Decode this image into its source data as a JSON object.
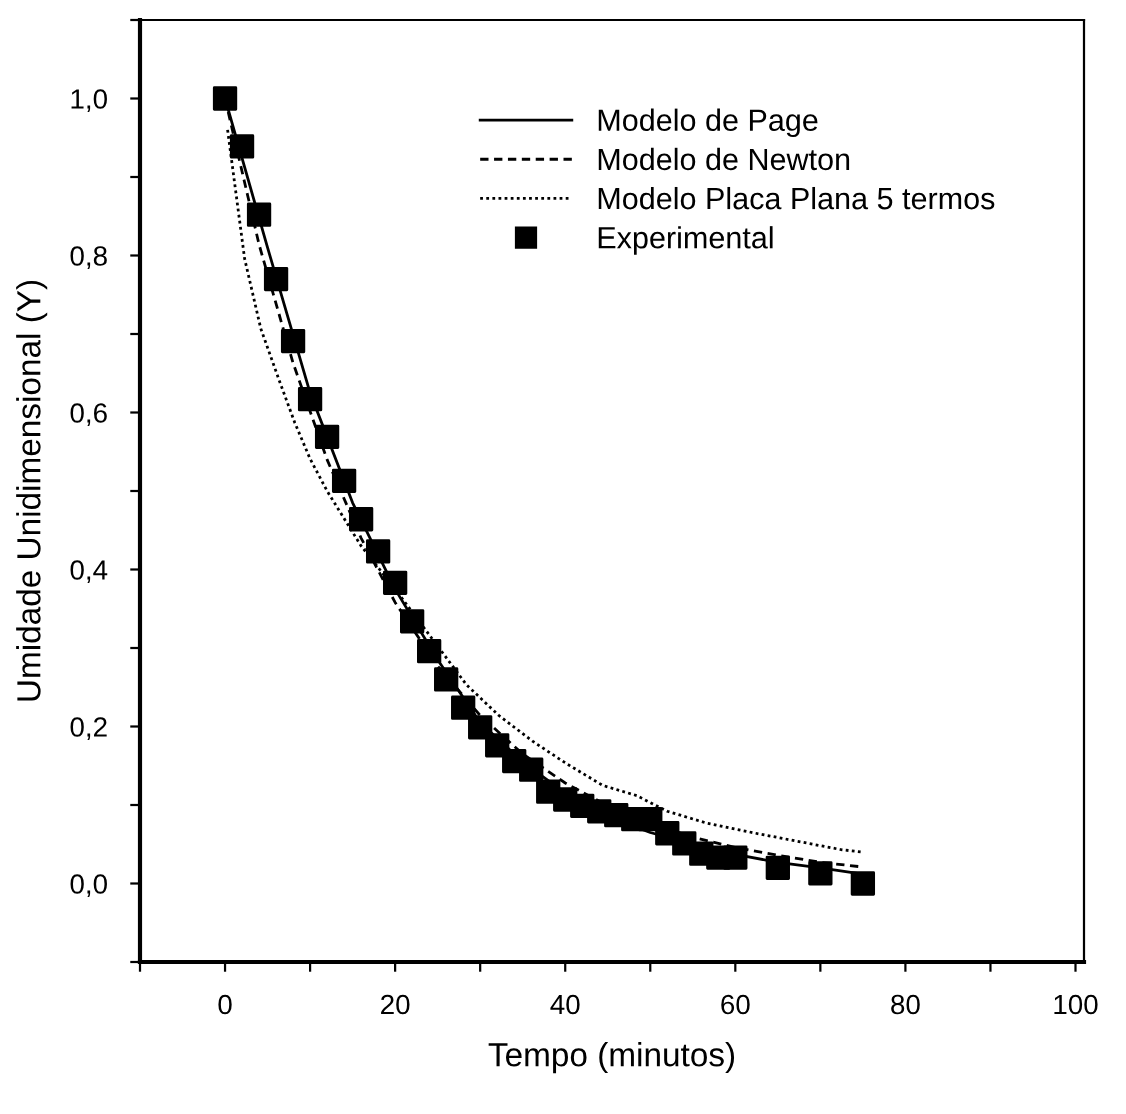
{
  "chart_data": {
    "type": "line",
    "xlabel": "Tempo (minutos)",
    "ylabel": "Umidade Unidimensional (Y)",
    "xlim": [
      -10,
      101
    ],
    "ylim": [
      -0.1,
      1.1
    ],
    "xticks": [
      {
        "value": -10,
        "label": null
      },
      0,
      {
        "value": 10,
        "label": null
      },
      20,
      {
        "value": 30,
        "label": null
      },
      40,
      {
        "value": 50,
        "label": null
      },
      60,
      {
        "value": 70,
        "label": null
      },
      80,
      {
        "value": 90,
        "label": null
      },
      100
    ],
    "yticks": [
      {
        "value": -0.1,
        "label": null
      },
      {
        "value": 0,
        "label": "0,0"
      },
      {
        "value": 0.1,
        "label": null
      },
      {
        "value": 0.2,
        "label": "0,2"
      },
      {
        "value": 0.3,
        "label": null
      },
      {
        "value": 0.4,
        "label": "0,4"
      },
      {
        "value": 0.5,
        "label": null
      },
      {
        "value": 0.6,
        "label": "0,6"
      },
      {
        "value": 0.7,
        "label": null
      },
      {
        "value": 0.8,
        "label": "0,8"
      },
      {
        "value": 0.9,
        "label": null
      },
      {
        "value": 1.0,
        "label": "1,0"
      },
      {
        "value": 1.1,
        "label": null
      }
    ],
    "grid": false,
    "legend": "top right",
    "series": [
      {
        "name": "Modelo de Page",
        "line_style": "solid",
        "marker": "none",
        "color": "#000000",
        "x": [
          0,
          5,
          10,
          15,
          20,
          25,
          30,
          35,
          40,
          45,
          50,
          55,
          60,
          65,
          70,
          75
        ],
        "values": [
          1.0,
          0.81,
          0.625,
          0.485,
          0.375,
          0.285,
          0.205,
          0.155,
          0.115,
          0.085,
          0.065,
          0.05,
          0.037,
          0.027,
          0.02,
          0.012
        ]
      },
      {
        "name": "Modelo de Newton",
        "line_style": "dashed",
        "marker": "none",
        "color": "#000000",
        "x": [
          0,
          4,
          8,
          12,
          16,
          20,
          25,
          30,
          35,
          40,
          45,
          50,
          55,
          60,
          65,
          70,
          75
        ],
        "values": [
          1.0,
          0.814,
          0.663,
          0.54,
          0.44,
          0.358,
          0.277,
          0.214,
          0.165,
          0.128,
          0.099,
          0.077,
          0.059,
          0.046,
          0.036,
          0.027,
          0.021
        ]
      },
      {
        "name": "Modelo Placa Plana 5 termos",
        "line_style": "dotted",
        "marker": "none",
        "color": "#000000",
        "x": [
          0.3,
          2.3,
          4.2,
          6.3,
          8.2,
          10,
          12,
          16,
          20,
          28.4,
          32.2,
          36.2,
          40.1,
          44.4,
          48.4,
          52,
          56.6,
          62.4,
          72.5,
          75
        ],
        "values": [
          0.96,
          0.796,
          0.707,
          0.643,
          0.587,
          0.541,
          0.5,
          0.43,
          0.375,
          0.253,
          0.214,
          0.181,
          0.153,
          0.125,
          0.112,
          0.092,
          0.077,
          0.064,
          0.043,
          0.04
        ]
      },
      {
        "name": "Experimental",
        "type": "scatter",
        "marker": "square",
        "color": "#000000",
        "x": [
          0,
          2,
          4,
          6,
          8,
          10,
          12,
          14,
          16,
          18,
          20,
          22,
          24,
          26,
          28,
          30,
          32,
          34,
          36,
          38,
          40,
          42,
          44,
          46,
          48,
          50,
          52,
          54,
          56,
          58,
          60,
          65,
          70,
          75
        ],
        "values": [
          1.0,
          0.939,
          0.852,
          0.77,
          0.691,
          0.617,
          0.569,
          0.513,
          0.464,
          0.423,
          0.383,
          0.334,
          0.296,
          0.26,
          0.224,
          0.199,
          0.176,
          0.156,
          0.145,
          0.117,
          0.107,
          0.099,
          0.092,
          0.087,
          0.082,
          0.082,
          0.064,
          0.051,
          0.038,
          0.033,
          0.033,
          0.02,
          0.013,
          0.0
        ]
      }
    ]
  }
}
